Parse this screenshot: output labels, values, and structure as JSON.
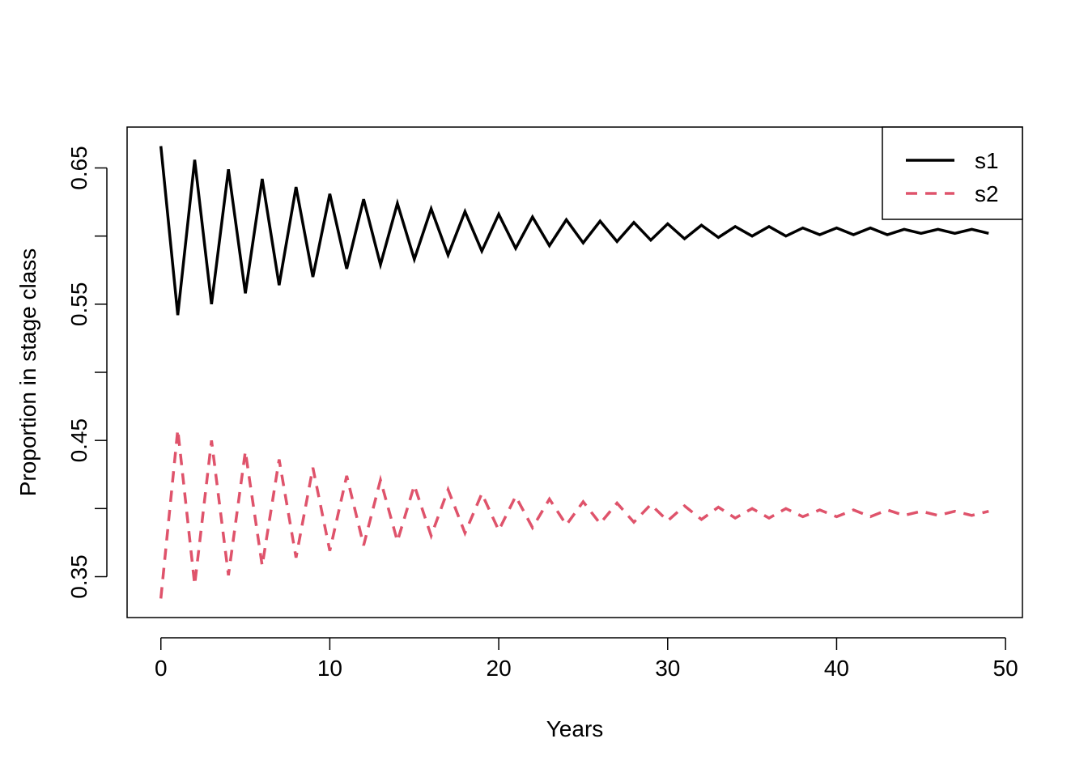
{
  "chart_data": {
    "type": "line",
    "xlabel": "Years",
    "ylabel": "Proportion in stage class",
    "xlim": [
      -2,
      51
    ],
    "ylim": [
      0.32,
      0.68
    ],
    "x_ticks": [
      0,
      10,
      20,
      30,
      40,
      50
    ],
    "y_ticks": [
      0.35,
      0.4,
      0.45,
      0.5,
      0.55,
      0.6,
      0.65
    ],
    "y_tick_labels": [
      "0.35",
      "",
      "0.45",
      "",
      "0.55",
      "",
      "0.65"
    ],
    "grid": false,
    "legend_position": "top-right",
    "x": [
      0,
      1,
      2,
      3,
      4,
      5,
      6,
      7,
      8,
      9,
      10,
      11,
      12,
      13,
      14,
      15,
      16,
      17,
      18,
      19,
      20,
      21,
      22,
      23,
      24,
      25,
      26,
      27,
      28,
      29,
      30,
      31,
      32,
      33,
      34,
      35,
      36,
      37,
      38,
      39,
      40,
      41,
      42,
      43,
      44,
      45,
      46,
      47,
      48,
      49
    ],
    "series": [
      {
        "name": "s1",
        "color": "#000000",
        "dash": "solid",
        "values": [
          0.666,
          0.542,
          0.656,
          0.55,
          0.649,
          0.558,
          0.642,
          0.564,
          0.636,
          0.57,
          0.631,
          0.576,
          0.627,
          0.579,
          0.624,
          0.583,
          0.62,
          0.586,
          0.618,
          0.589,
          0.616,
          0.591,
          0.614,
          0.593,
          0.612,
          0.595,
          0.611,
          0.596,
          0.61,
          0.597,
          0.609,
          0.598,
          0.608,
          0.599,
          0.607,
          0.6,
          0.607,
          0.6,
          0.606,
          0.601,
          0.606,
          0.601,
          0.606,
          0.601,
          0.605,
          0.602,
          0.605,
          0.602,
          0.605,
          0.602
        ]
      },
      {
        "name": "s2",
        "color": "#df536b",
        "dash": "dashed",
        "values": [
          0.334,
          0.458,
          0.344,
          0.45,
          0.351,
          0.442,
          0.358,
          0.436,
          0.364,
          0.43,
          0.369,
          0.424,
          0.373,
          0.421,
          0.376,
          0.417,
          0.38,
          0.414,
          0.382,
          0.411,
          0.384,
          0.409,
          0.386,
          0.407,
          0.388,
          0.405,
          0.389,
          0.404,
          0.39,
          0.403,
          0.391,
          0.402,
          0.392,
          0.401,
          0.393,
          0.4,
          0.393,
          0.4,
          0.394,
          0.399,
          0.394,
          0.399,
          0.394,
          0.399,
          0.395,
          0.398,
          0.395,
          0.398,
          0.395,
          0.398
        ]
      }
    ]
  }
}
